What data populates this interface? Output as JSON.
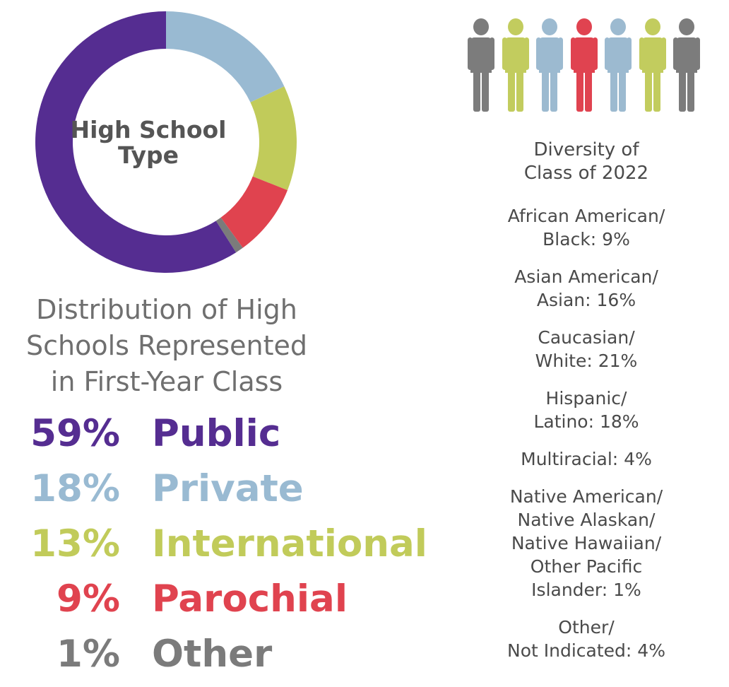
{
  "chart_data": {
    "type": "pie",
    "center_label": [
      "High School",
      "Type"
    ],
    "title_lines": [
      "Distribution of High",
      "Schools Represented",
      "in First-Year Class"
    ],
    "categories": [
      "Public",
      "Private",
      "International",
      "Parochial",
      "Other"
    ],
    "values": [
      59,
      18,
      13,
      9,
      1
    ],
    "value_labels": [
      "59%",
      "18%",
      "13%",
      "9%",
      "1%"
    ],
    "colors": [
      "#552d91",
      "#99bad2",
      "#c1cb5a",
      "#e0434f",
      "#7b7b7b"
    ]
  },
  "people_icons": [
    "#7c7c7c",
    "#c2cc5e",
    "#9cbad0",
    "#e04350",
    "#9cbad0",
    "#c2cc5e",
    "#7c7c7c"
  ],
  "diversity": {
    "title": [
      "Diversity of",
      "Class of 2022"
    ],
    "items": [
      [
        "African American/",
        "Black: 9%"
      ],
      [
        "Asian American/",
        "Asian: 16%"
      ],
      [
        "Caucasian/",
        "White: 21%"
      ],
      [
        "Hispanic/",
        "Latino: 18%"
      ],
      [
        "Multiracial: 4%"
      ],
      [
        "Native American/",
        "Native Alaskan/",
        "Native Hawaiian/",
        "Other Pacific",
        "Islander: 1%"
      ],
      [
        "Other/",
        "Not Indicated: 4%"
      ]
    ]
  }
}
